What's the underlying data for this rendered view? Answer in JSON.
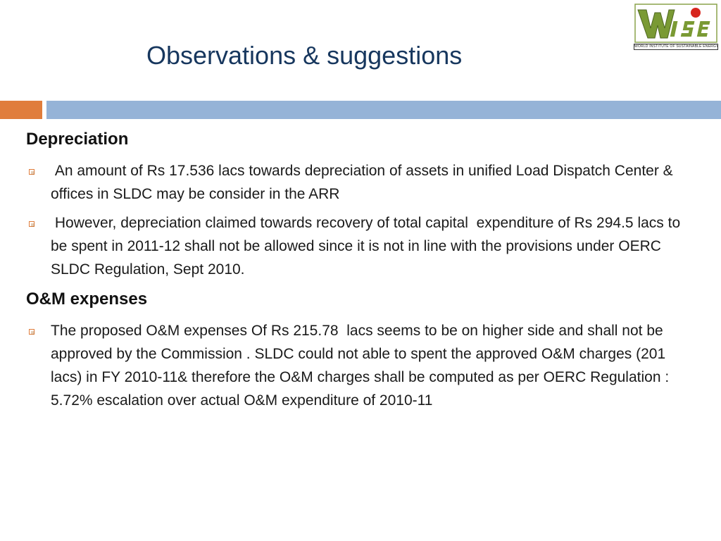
{
  "slide": {
    "title": "Observations & suggestions"
  },
  "logo": {
    "mark": "WISE",
    "tagline": "WORLD INSTITUTE OF SUSTAINABLE ENERGY"
  },
  "sections": [
    {
      "heading": "Depreciation",
      "bullets": [
        " An amount of Rs 17.536 lacs towards depreciation of assets in unified Load Dispatch Center & offices in SLDC may be consider in the ARR",
        " However, depreciation claimed towards recovery of total capital  expenditure of Rs 294.5 lacs to be spent in 2011-12 shall not be allowed since it is not in line with the provisions under OERC SLDC Regulation, Sept 2010."
      ]
    },
    {
      "heading": "O&M expenses",
      "bullets": [
        "The proposed O&M expenses Of Rs 215.78  lacs seems to be on higher side and shall not be approved by the Commission . SLDC could not able to spent the approved O&M charges (201 lacs) in FY 2010-11& therefore the O&M charges shall be computed as per OERC Regulation :  5.72% escalation over actual O&M expenditure of 2010-11"
      ]
    }
  ],
  "colors": {
    "title": "#17375e",
    "accent_orange": "#e07d3c",
    "accent_blue": "#95b3d7",
    "logo_green": "#6b8e23",
    "logo_red": "#d7261e"
  }
}
